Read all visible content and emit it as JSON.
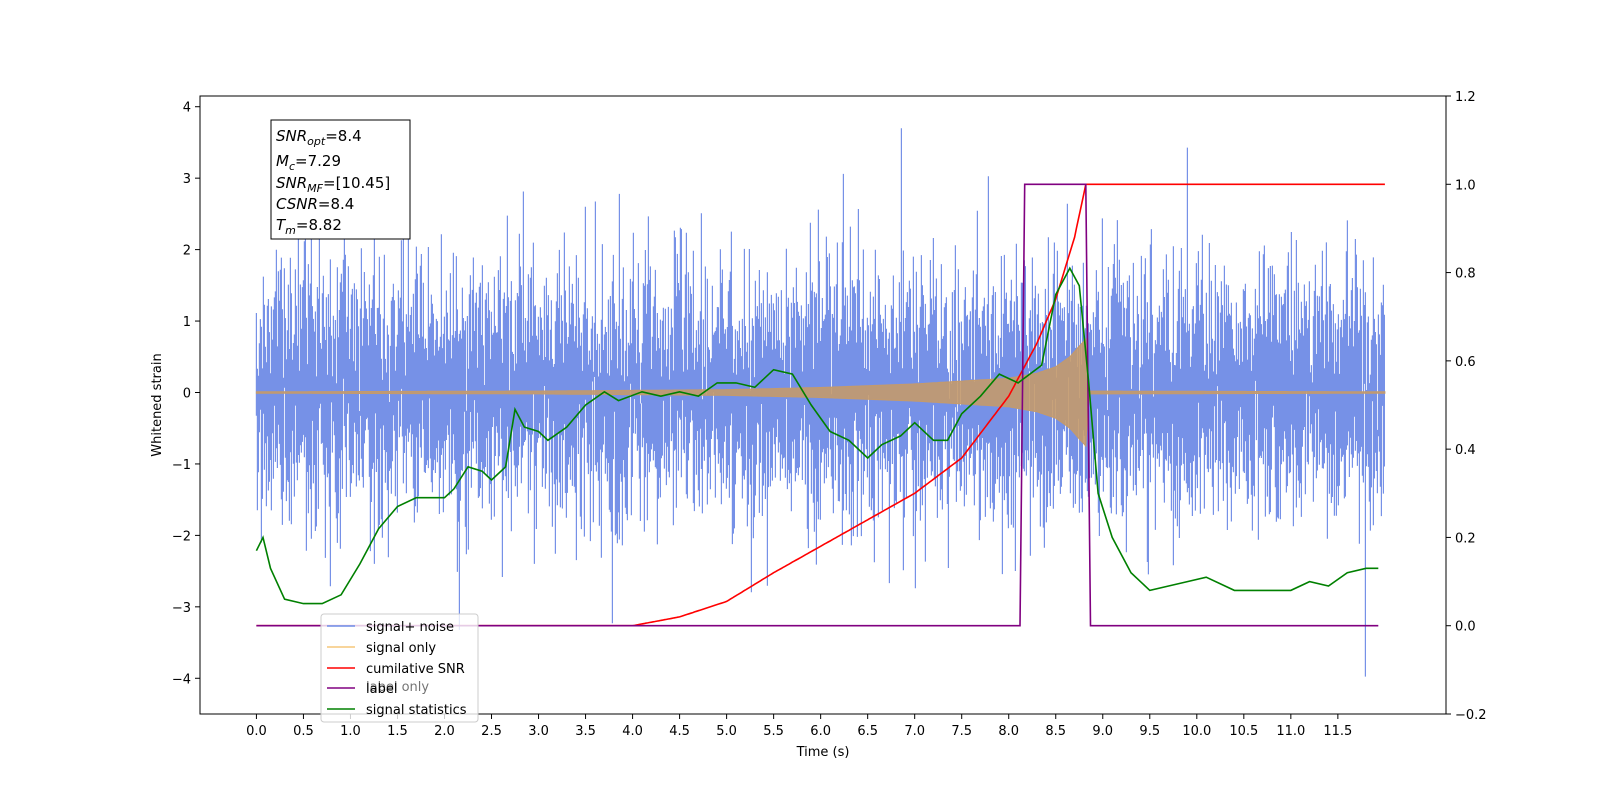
{
  "chart_data": {
    "type": "line",
    "xlabel": "Time (s)",
    "ylabel_left": "Whitened strain",
    "xlim": [
      -0.6,
      12.65
    ],
    "ylim_left": [
      -4.5,
      4.15
    ],
    "ylim_right": [
      -0.2,
      1.2
    ],
    "x_ticks": [
      "0.0",
      "0.5",
      "1.0",
      "1.5",
      "2.0",
      "2.5",
      "3.0",
      "3.5",
      "4.0",
      "4.5",
      "5.0",
      "5.5",
      "6.0",
      "6.5",
      "7.0",
      "7.5",
      "8.0",
      "8.5",
      "9.0",
      "9.5",
      "10.0",
      "10.5",
      "11.0",
      "11.5"
    ],
    "x_tick_values": [
      0,
      0.5,
      1,
      1.5,
      2,
      2.5,
      3,
      3.5,
      4,
      4.5,
      5,
      5.5,
      6,
      6.5,
      7,
      7.5,
      8,
      8.5,
      9,
      9.5,
      10,
      10.5,
      11,
      11.5
    ],
    "y_ticks_left": [
      "4",
      "3",
      "2",
      "1",
      "0",
      "−1",
      "−2",
      "−3",
      "−4"
    ],
    "y_tick_values_left": [
      4,
      3,
      2,
      1,
      0,
      -1,
      -2,
      -3,
      -4
    ],
    "y_ticks_right": [
      "1.2",
      "1.0",
      "0.8",
      "0.6",
      "0.4",
      "0.2",
      "0.0",
      "−0.2"
    ],
    "y_tick_values_right": [
      1.2,
      1.0,
      0.8,
      0.6,
      0.4,
      0.2,
      0.0,
      -0.2
    ],
    "annotation": {
      "snr_opt": {
        "base": "SNR",
        "sub": "opt",
        "value": "=8.4"
      },
      "mc": {
        "base": "M",
        "sub": "c",
        "value": "=7.29"
      },
      "snr_mf": {
        "base": "SNR",
        "sub": "MF",
        "value": "=[10.45]"
      },
      "csnr": {
        "base": "CSNR",
        "value": "=8.4"
      },
      "tm": {
        "base": "T",
        "sub": "m",
        "value": "=8.82"
      }
    },
    "legend": {
      "placement": "lower-left",
      "entries": [
        {
          "label": "signal+ noise",
          "color": "#6f8be6"
        },
        {
          "label": "signal only",
          "color": "#f5c77a"
        },
        {
          "label": "cumilative SNR",
          "color": "#ff0000"
        },
        {
          "label": "label",
          "color": "#800080"
        },
        {
          "label": "signal statistics",
          "color": "#008000"
        }
      ],
      "ghost_labels": [
        "label only"
      ]
    },
    "series": [
      {
        "name": "signal+ noise",
        "axis": "left",
        "color": "#6f8be6",
        "x_range": [
          0,
          12
        ],
        "noise_std": 0.8,
        "spike_max": 3.7,
        "spike_min": -4.1
      },
      {
        "name": "signal only",
        "axis": "left",
        "color": "#c49a6c",
        "envelope_x": [
          0,
          3,
          5,
          6,
          7,
          7.5,
          8,
          8.3,
          8.5,
          8.65,
          8.75,
          8.82,
          8.85,
          12
        ],
        "envelope_y": [
          0.01,
          0.02,
          0.04,
          0.07,
          0.12,
          0.16,
          0.2,
          0.27,
          0.36,
          0.5,
          0.65,
          0.75,
          0.02,
          0.01
        ]
      },
      {
        "name": "cumilative SNR",
        "axis": "right",
        "color": "#ff0000",
        "x": [
          0,
          4.0,
          4.5,
          5.0,
          5.5,
          6.0,
          6.5,
          7.0,
          7.5,
          8.0,
          8.3,
          8.5,
          8.7,
          8.82,
          8.85,
          12
        ],
        "y": [
          0.0,
          0.0,
          0.02,
          0.055,
          0.12,
          0.18,
          0.24,
          0.3,
          0.38,
          0.52,
          0.64,
          0.74,
          0.88,
          1.0,
          1.0,
          1.0
        ]
      },
      {
        "name": "label",
        "axis": "right",
        "color": "#800080",
        "x": [
          0,
          8.12,
          8.17,
          8.82,
          8.87,
          11.93
        ],
        "y": [
          0,
          0,
          1,
          1,
          0,
          0
        ]
      },
      {
        "name": "signal statistics",
        "axis": "right",
        "color": "#008000",
        "x": [
          0,
          0.07,
          0.15,
          0.3,
          0.5,
          0.7,
          0.9,
          1.1,
          1.3,
          1.5,
          1.7,
          2.0,
          2.1,
          2.25,
          2.4,
          2.5,
          2.65,
          2.75,
          2.85,
          3.0,
          3.1,
          3.3,
          3.5,
          3.7,
          3.85,
          4.1,
          4.3,
          4.5,
          4.7,
          4.9,
          5.1,
          5.3,
          5.5,
          5.7,
          5.9,
          6.1,
          6.3,
          6.5,
          6.65,
          6.85,
          7.0,
          7.2,
          7.35,
          7.5,
          7.7,
          7.9,
          8.1,
          8.35,
          8.5,
          8.65,
          8.75,
          8.85,
          8.95,
          9.1,
          9.3,
          9.5,
          9.7,
          9.9,
          10.1,
          10.4,
          10.7,
          11.0,
          11.2,
          11.4,
          11.6,
          11.8,
          11.93
        ],
        "y": [
          0.17,
          0.2,
          0.13,
          0.06,
          0.05,
          0.05,
          0.07,
          0.14,
          0.22,
          0.27,
          0.29,
          0.29,
          0.31,
          0.36,
          0.35,
          0.33,
          0.36,
          0.49,
          0.45,
          0.44,
          0.42,
          0.45,
          0.5,
          0.53,
          0.51,
          0.53,
          0.52,
          0.53,
          0.52,
          0.55,
          0.55,
          0.54,
          0.58,
          0.57,
          0.5,
          0.44,
          0.42,
          0.38,
          0.41,
          0.43,
          0.46,
          0.42,
          0.42,
          0.48,
          0.52,
          0.57,
          0.55,
          0.59,
          0.75,
          0.81,
          0.77,
          0.55,
          0.3,
          0.2,
          0.12,
          0.08,
          0.09,
          0.1,
          0.11,
          0.08,
          0.08,
          0.08,
          0.1,
          0.09,
          0.12,
          0.13,
          0.13
        ]
      }
    ]
  }
}
